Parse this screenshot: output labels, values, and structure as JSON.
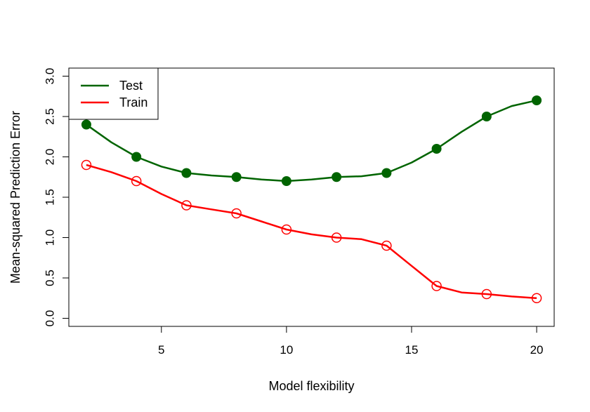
{
  "chart_data": {
    "type": "line",
    "title": "",
    "xlabel": "Model flexibility",
    "ylabel": "Mean-squared Prediction Error",
    "xlim": [
      1.3,
      20.7
    ],
    "ylim": [
      -0.1,
      3.1
    ],
    "xticks": [
      5,
      10,
      15,
      20
    ],
    "yticks": [
      0.0,
      0.5,
      1.0,
      1.5,
      2.0,
      2.5,
      3.0
    ],
    "ytick_labels": [
      "0.0",
      "0.5",
      "1.0",
      "1.5",
      "2.0",
      "2.5",
      "3.0"
    ],
    "grid": false,
    "legend_position": "top-left",
    "series": [
      {
        "name": "Test",
        "color": "#006400",
        "marker": "filled-circle",
        "x": [
          2,
          3,
          4,
          5,
          6,
          7,
          8,
          9,
          10,
          11,
          12,
          13,
          14,
          15,
          16,
          17,
          18,
          19,
          20
        ],
        "y": [
          2.4,
          2.18,
          2.0,
          1.88,
          1.8,
          1.77,
          1.75,
          1.72,
          1.7,
          1.72,
          1.75,
          1.76,
          1.8,
          1.93,
          2.1,
          2.31,
          2.5,
          2.63,
          2.7
        ],
        "marker_x": [
          2,
          4,
          6,
          8,
          10,
          12,
          14,
          16,
          18,
          20
        ],
        "marker_y": [
          2.4,
          2.0,
          1.8,
          1.75,
          1.7,
          1.75,
          1.8,
          2.1,
          2.5,
          2.7
        ]
      },
      {
        "name": "Train",
        "color": "#ff0000",
        "marker": "open-circle",
        "x": [
          2,
          3,
          4,
          5,
          6,
          7,
          8,
          9,
          10,
          11,
          12,
          13,
          14,
          15,
          16,
          17,
          18,
          19,
          20
        ],
        "y": [
          1.9,
          1.81,
          1.7,
          1.54,
          1.4,
          1.35,
          1.3,
          1.2,
          1.1,
          1.04,
          1.0,
          0.98,
          0.9,
          0.65,
          0.4,
          0.32,
          0.3,
          0.27,
          0.25
        ],
        "marker_x": [
          2,
          4,
          6,
          8,
          10,
          12,
          14,
          16,
          18,
          20
        ],
        "marker_y": [
          1.9,
          1.7,
          1.4,
          1.3,
          1.1,
          1.0,
          0.9,
          0.4,
          0.3,
          0.25
        ]
      }
    ]
  }
}
